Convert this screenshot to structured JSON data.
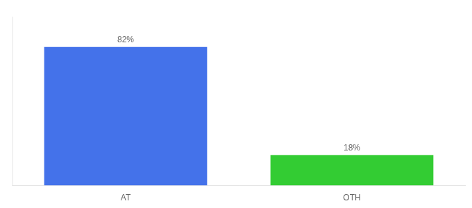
{
  "chart_data": {
    "type": "bar",
    "categories": [
      "AT",
      "OTH"
    ],
    "values": [
      82,
      18
    ],
    "value_labels": [
      "82%",
      "18%"
    ],
    "data_labels": true,
    "colors": [
      "#4472EA",
      "#33CC33"
    ],
    "ylim": [
      0,
      100
    ],
    "yticks": [],
    "grid": false,
    "tick_labels": "x"
  }
}
